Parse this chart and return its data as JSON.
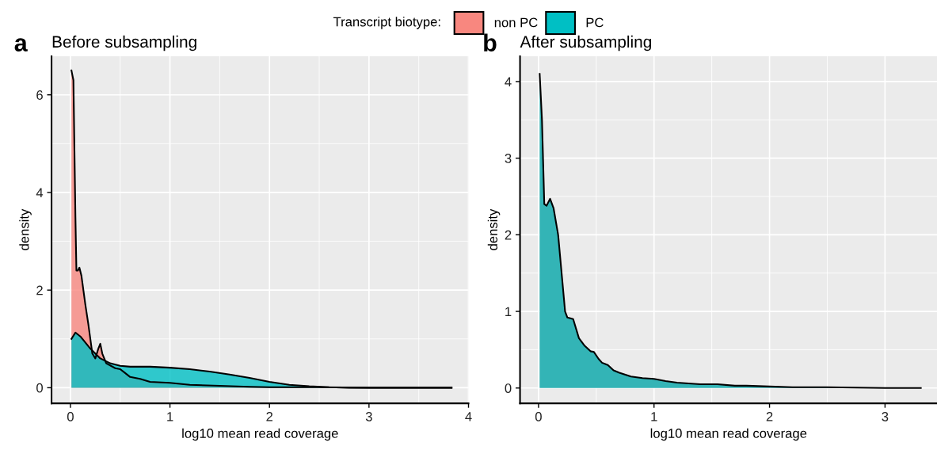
{
  "chart_data": [
    {
      "type": "area",
      "title": "Before subsampling",
      "xlabel": "log10 mean read coverage",
      "ylabel": "density",
      "legend_title": "Transcript biotype:",
      "legend": "top",
      "grid": true,
      "annotations": [
        "a"
      ],
      "xlim": [
        -0.19,
        4.0
      ],
      "xticks": [
        0,
        1,
        2,
        3,
        4
      ],
      "ylim": [
        -0.32,
        6.79
      ],
      "yticks": [
        0,
        2,
        4,
        6
      ],
      "series": [
        {
          "name": "non PC",
          "color": "#f8877f",
          "x": [
            0.01,
            0.03,
            0.05,
            0.06,
            0.075,
            0.09,
            0.11,
            0.15,
            0.18,
            0.22,
            0.25,
            0.28,
            0.3,
            0.32,
            0.36,
            0.45,
            0.5,
            0.55,
            0.6,
            0.7,
            0.8,
            1.0,
            1.2,
            1.5,
            1.8,
            2.0,
            2.5,
            3.0,
            3.83
          ],
          "values": [
            6.5,
            6.3,
            3.5,
            2.4,
            2.4,
            2.46,
            2.3,
            1.7,
            1.3,
            0.7,
            0.6,
            0.8,
            0.9,
            0.7,
            0.5,
            0.4,
            0.38,
            0.3,
            0.22,
            0.18,
            0.12,
            0.1,
            0.06,
            0.04,
            0.02,
            0.01,
            0.01,
            0.0,
            0.0
          ]
        },
        {
          "name": "PC",
          "color": "#00bfc4",
          "x": [
            0.01,
            0.05,
            0.1,
            0.2,
            0.3,
            0.4,
            0.5,
            0.6,
            0.8,
            1.0,
            1.2,
            1.4,
            1.6,
            1.8,
            2.0,
            2.2,
            2.4,
            2.6,
            2.8,
            3.0,
            3.83
          ],
          "values": [
            1.0,
            1.13,
            1.05,
            0.8,
            0.6,
            0.5,
            0.45,
            0.43,
            0.43,
            0.41,
            0.38,
            0.33,
            0.27,
            0.2,
            0.12,
            0.06,
            0.03,
            0.01,
            0.0,
            0.0,
            0.0
          ]
        }
      ]
    },
    {
      "type": "area",
      "title": "After subsampling",
      "xlabel": "log10 mean read coverage",
      "ylabel": "density",
      "grid": true,
      "annotations": [
        "b"
      ],
      "xlim": [
        -0.16,
        3.45
      ],
      "xticks": [
        0,
        1,
        2,
        3
      ],
      "ylim": [
        -0.2,
        4.33
      ],
      "yticks": [
        0,
        1,
        2,
        3,
        4
      ],
      "series": [
        {
          "color": "#33b4b6",
          "x": [
            0.01,
            0.03,
            0.05,
            0.07,
            0.1,
            0.13,
            0.17,
            0.2,
            0.23,
            0.25,
            0.3,
            0.35,
            0.4,
            0.45,
            0.48,
            0.52,
            0.55,
            0.6,
            0.65,
            0.7,
            0.8,
            0.9,
            1.0,
            1.1,
            1.2,
            1.4,
            1.55,
            1.7,
            1.8,
            2.0,
            2.2,
            2.5,
            3.0,
            3.31
          ],
          "values": [
            4.1,
            3.5,
            2.4,
            2.38,
            2.47,
            2.35,
            2.0,
            1.5,
            1.0,
            0.92,
            0.9,
            0.65,
            0.55,
            0.48,
            0.47,
            0.38,
            0.33,
            0.3,
            0.23,
            0.2,
            0.15,
            0.13,
            0.12,
            0.09,
            0.07,
            0.05,
            0.05,
            0.03,
            0.03,
            0.02,
            0.01,
            0.01,
            0.0,
            0.0
          ]
        }
      ]
    }
  ]
}
